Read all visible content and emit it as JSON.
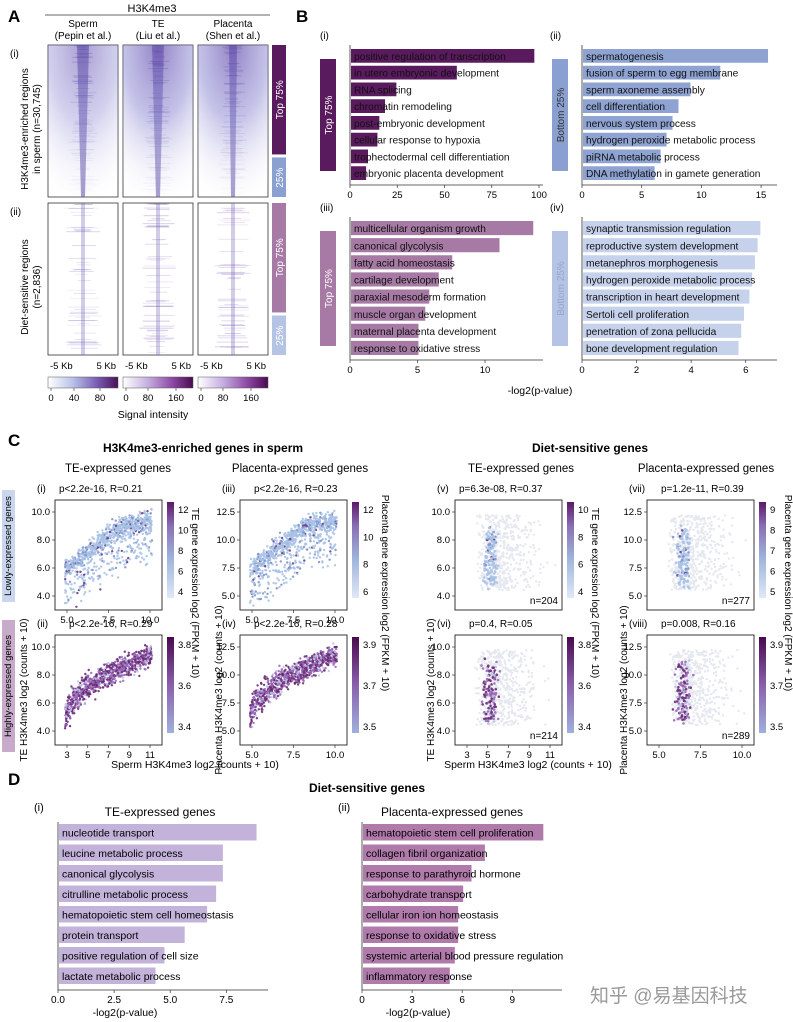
{
  "figure_labels": {
    "A": "A",
    "B": "B",
    "C": "C",
    "D": "D"
  },
  "watermark": "知乎 @易基因科技",
  "colors": {
    "dark_purple": "#5a1a5e",
    "light_purple": "#a77aa5",
    "blue": "#8aa0d0",
    "light_blue": "#b5c4e4",
    "d_te": "#c3b3da",
    "d_pl": "#b07bab"
  },
  "panelA": {
    "header": "H3K4me3",
    "columns": [
      "Sperm",
      "TE",
      "Placenta"
    ],
    "citations": [
      "(Pepin et al.)",
      "(Liu et al.)",
      "(Shen et al.)"
    ],
    "row_labels": [
      {
        "num": "(i)",
        "line1": "H3K4me3-enriched regions",
        "line2": "in sperm (n=30,745)"
      },
      {
        "num": "(ii)",
        "line1": "Diet-sensitive regions",
        "line2": "(n=2,836)"
      }
    ],
    "side_labels": {
      "top": "Top 75%",
      "bottom": "25%"
    },
    "x_ticks": [
      "-5 Kb",
      "5 Kb"
    ],
    "colorbars": [
      [
        "0",
        "40",
        "80"
      ],
      [
        "0",
        "80",
        "160"
      ],
      [
        "0",
        "80",
        "160"
      ]
    ],
    "colorbar_title": "Signal intensity"
  },
  "panelB": {
    "xlabel": "-log2(p-value)",
    "subplots": [
      {
        "num": "(i)",
        "side": "Top 75%",
        "xlim": [
          0,
          100
        ],
        "ticks": [
          "0",
          "25",
          "50",
          "75",
          "100"
        ],
        "terms": [
          "positive regulation of transcription",
          "in utero embryonic development",
          "RNA splicing",
          "chromatin remodeling",
          "post-embryonic development",
          "cellular response to hypoxia",
          "trophectodermal cell differentiation",
          "embryonic placenta development"
        ],
        "values": [
          97,
          56,
          24,
          18,
          15,
          14,
          9,
          8
        ]
      },
      {
        "num": "(ii)",
        "side": "Bottom 25%",
        "xlim": [
          0,
          16
        ],
        "ticks": [
          "0",
          "5",
          "10",
          "15"
        ],
        "terms": [
          "spermatogenesis",
          "fusion of sperm to egg membrane",
          "sperm axoneme assembly",
          "cell differentiation",
          "nervous system process",
          "hydrogen peroxide metabolic process",
          "piRNA metabolic process",
          "DNA methylation in gamete generation"
        ],
        "values": [
          15.5,
          11.5,
          9,
          8,
          7.5,
          7,
          6.5,
          6
        ]
      },
      {
        "num": "(iii)",
        "side": "Top 75%",
        "xlim": [
          0,
          14
        ],
        "ticks": [
          "0",
          "5",
          "10"
        ],
        "terms": [
          "multicellular organism growth",
          "canonical glycolysis",
          "fatty acid homeostasis",
          "cartilage development",
          "paraxial mesoderm formation",
          "muscle organ development",
          "maternal placenta development",
          "response to oxidative stress"
        ],
        "values": [
          13.5,
          11,
          7.5,
          6.5,
          5.8,
          5.5,
          5,
          5
        ]
      },
      {
        "num": "(iv)",
        "side": "Bottom 25%",
        "xlim": [
          0,
          7
        ],
        "ticks": [
          "0",
          "2",
          "4",
          "6"
        ],
        "terms": [
          "synaptic transmission regulation",
          "reproductive system development",
          "metanephros morphogenesis",
          "hydrogen peroxide metabolic process",
          "transcription in heart development",
          "Sertoli cell proliferation",
          "penetration of zona pellucida",
          "bone development regulation"
        ],
        "values": [
          6.5,
          6.4,
          6.3,
          6.2,
          6.1,
          5.9,
          5.8,
          5.7
        ]
      }
    ]
  },
  "panelC": {
    "group_titles": [
      "H3K4me3-enriched genes in sperm",
      "Diet-sensitive genes"
    ],
    "col_titles": [
      "TE-expressed genes",
      "Placenta-expressed genes",
      "TE-expressed genes",
      "Placenta-expressed genes"
    ],
    "row_side_labels": [
      "Lowly-expressed genes",
      "Highly-expressed genes"
    ],
    "ylabels": [
      "TE H3K4me3 log2 (counts + 10)",
      "Placenta H3K4me3 log2 (counts + 10)"
    ],
    "xlabel": "Sperm H3K4me3 log2 (counts + 10)",
    "cb_labels": [
      "TE gene expression log2 (FPKM + 10)",
      "Placenta gene expression log2 (FPKM + 10)"
    ],
    "plots": [
      {
        "num": "(i)",
        "stat": "p<2.2e-16, R=0.21",
        "n": "",
        "y_ticks": [
          "4.0",
          "6.0",
          "8.0",
          "10.0"
        ],
        "x_ticks": [
          "5.0",
          "7.5",
          "10.0"
        ],
        "cb_ticks": [
          "4",
          "6",
          "8",
          "10",
          "12"
        ],
        "kind": "low",
        "dense": true
      },
      {
        "num": "(iii)",
        "stat": "p<2.2e-16, R=0.23",
        "n": "",
        "y_ticks": [
          "5.0",
          "7.5",
          "10.0",
          "12.5"
        ],
        "x_ticks": [
          "5.0",
          "7.5",
          "10.0"
        ],
        "cb_ticks": [
          "6",
          "8",
          "10",
          "12"
        ],
        "kind": "low",
        "dense": true
      },
      {
        "num": "(v)",
        "stat": "p=6.3e-08, R=0.37",
        "n": "n=204",
        "y_ticks": [
          "4.0",
          "6.0",
          "8.0",
          "10.0"
        ],
        "x_ticks": [],
        "cb_ticks": [
          "4",
          "6",
          "8",
          "10"
        ],
        "kind": "low",
        "dense": false
      },
      {
        "num": "(vii)",
        "stat": "p=1.2e-11, R=0.39",
        "n": "n=277",
        "y_ticks": [
          "5.0",
          "7.5",
          "10.0",
          "12.5"
        ],
        "x_ticks": [],
        "cb_ticks": [
          "5",
          "6",
          "7",
          "8",
          "9"
        ],
        "kind": "low",
        "dense": false
      },
      {
        "num": "(ii)",
        "stat": "p<2.2e-16, R=0.29",
        "n": "",
        "y_ticks": [
          "4.0",
          "6.0",
          "8.0",
          "10.0"
        ],
        "x_ticks": [
          "3",
          "5",
          "7",
          "9",
          "11"
        ],
        "cb_ticks": [
          "3.4",
          "3.6",
          "3.8"
        ],
        "kind": "high",
        "dense": true
      },
      {
        "num": "(iv)",
        "stat": "p<2.2e-16, R=0.28",
        "n": "",
        "y_ticks": [
          "5.0",
          "7.5",
          "10.0",
          "12.5"
        ],
        "x_ticks": [
          "5.0",
          "7.5",
          "10.0"
        ],
        "cb_ticks": [
          "3.5",
          "3.7",
          "3.9"
        ],
        "kind": "high",
        "dense": true
      },
      {
        "num": "(vi)",
        "stat": "p=0.4, R=0.05",
        "n": "n=214",
        "y_ticks": [
          "4.0",
          "6.0",
          "8.0",
          "10.0"
        ],
        "x_ticks": [
          "3",
          "5",
          "7",
          "9",
          "11"
        ],
        "cb_ticks": [
          "3.4",
          "3.6",
          "3.8"
        ],
        "kind": "high",
        "dense": false
      },
      {
        "num": "(viii)",
        "stat": "p=0.008, R=0.16",
        "n": "n=289",
        "y_ticks": [
          "5.0",
          "7.5",
          "10.0",
          "12.5"
        ],
        "x_ticks": [
          "5.0",
          "7.5",
          "10.0"
        ],
        "cb_ticks": [
          "3.5",
          "3.7",
          "3.9"
        ],
        "kind": "high",
        "dense": false
      }
    ]
  },
  "panelD": {
    "title": "Diet-sensitive genes",
    "xlabel": "-log2(p-value)",
    "subplots": [
      {
        "num": "(i)",
        "title": "TE-expressed genes",
        "xlim": [
          0,
          9
        ],
        "ticks": [
          "0.0",
          "2.5",
          "5.0",
          "7.5"
        ],
        "terms": [
          "nucleotide transport",
          "leucine metabolic process",
          "canonical glycolysis",
          "citrulline metabolic process",
          "hematopoietic stem cell homeostasis",
          "protein transport",
          "positive regulation of cell size",
          "lactate metabolic process"
        ],
        "values": [
          8.8,
          7.3,
          7.3,
          7.0,
          6.6,
          5.6,
          4.7,
          4.3
        ]
      },
      {
        "num": "(ii)",
        "title": "Placenta-expressed genes",
        "xlim": [
          0,
          11.5
        ],
        "ticks": [
          "0",
          "3",
          "6",
          "9"
        ],
        "terms": [
          "hematopoietic stem cell proliferation",
          "collagen fibril organization",
          "response to parathyroid hormone",
          "carbohydrate transport",
          "cellular iron ion homeostasis",
          "response to oxidative stress",
          "systemic arterial blood pressure regulation",
          "inflammatory response"
        ],
        "values": [
          10.8,
          7.3,
          6.5,
          6.0,
          5.7,
          5.7,
          5.5,
          5.2
        ]
      }
    ]
  },
  "chart_data": [
    {
      "type": "bar",
      "title": "(i)",
      "xlabel": "-log2(p-value)",
      "xlim": [
        0,
        100
      ],
      "categories": [
        "positive regulation of transcription",
        "in utero embryonic development",
        "RNA splicing",
        "chromatin remodeling",
        "post-embryonic development",
        "cellular response to hypoxia",
        "trophectodermal cell differentiation",
        "embryonic placenta development"
      ],
      "values": [
        97,
        56,
        24,
        18,
        15,
        14,
        9,
        8
      ]
    },
    {
      "type": "bar",
      "title": "(ii)",
      "xlabel": "-log2(p-value)",
      "xlim": [
        0,
        16
      ],
      "categories": [
        "spermatogenesis",
        "fusion of sperm to egg membrane",
        "sperm axoneme assembly",
        "cell differentiation",
        "nervous system process",
        "hydrogen peroxide metabolic process",
        "piRNA metabolic process",
        "DNA methylation in gamete generation"
      ],
      "values": [
        15.5,
        11.5,
        9,
        8,
        7.5,
        7,
        6.5,
        6
      ]
    },
    {
      "type": "bar",
      "title": "(iii)",
      "xlabel": "-log2(p-value)",
      "xlim": [
        0,
        14
      ],
      "categories": [
        "multicellular organism growth",
        "canonical glycolysis",
        "fatty acid homeostasis",
        "cartilage development",
        "paraxial mesoderm formation",
        "muscle organ development",
        "maternal placenta development",
        "response to oxidative stress"
      ],
      "values": [
        13.5,
        11,
        7.5,
        6.5,
        5.8,
        5.5,
        5,
        5
      ]
    },
    {
      "type": "bar",
      "title": "(iv)",
      "xlabel": "-log2(p-value)",
      "xlim": [
        0,
        7
      ],
      "categories": [
        "synaptic transmission regulation",
        "reproductive system development",
        "metanephros morphogenesis",
        "hydrogen peroxide metabolic process",
        "transcription in heart development",
        "Sertoli cell proliferation",
        "penetration of zona pellucida",
        "bone development regulation"
      ],
      "values": [
        6.5,
        6.4,
        6.3,
        6.2,
        6.1,
        5.9,
        5.8,
        5.7
      ]
    },
    {
      "type": "bar",
      "title": "TE-expressed genes",
      "xlabel": "-log2(p-value)",
      "xlim": [
        0,
        9
      ],
      "categories": [
        "nucleotide transport",
        "leucine metabolic process",
        "canonical glycolysis",
        "citrulline metabolic process",
        "hematopoietic stem cell homeostasis",
        "protein transport",
        "positive regulation of cell size",
        "lactate metabolic process"
      ],
      "values": [
        8.8,
        7.3,
        7.3,
        7.0,
        6.6,
        5.6,
        4.7,
        4.3
      ]
    },
    {
      "type": "bar",
      "title": "Placenta-expressed genes",
      "xlabel": "-log2(p-value)",
      "xlim": [
        0,
        11.5
      ],
      "categories": [
        "hematopoietic stem cell proliferation",
        "collagen fibril organization",
        "response to parathyroid hormone",
        "carbohydrate transport",
        "cellular iron ion homeostasis",
        "response to oxidative stress",
        "systemic arterial blood pressure regulation",
        "inflammatory response"
      ],
      "values": [
        10.8,
        7.3,
        6.5,
        6.0,
        5.7,
        5.7,
        5.5,
        5.2
      ]
    }
  ]
}
